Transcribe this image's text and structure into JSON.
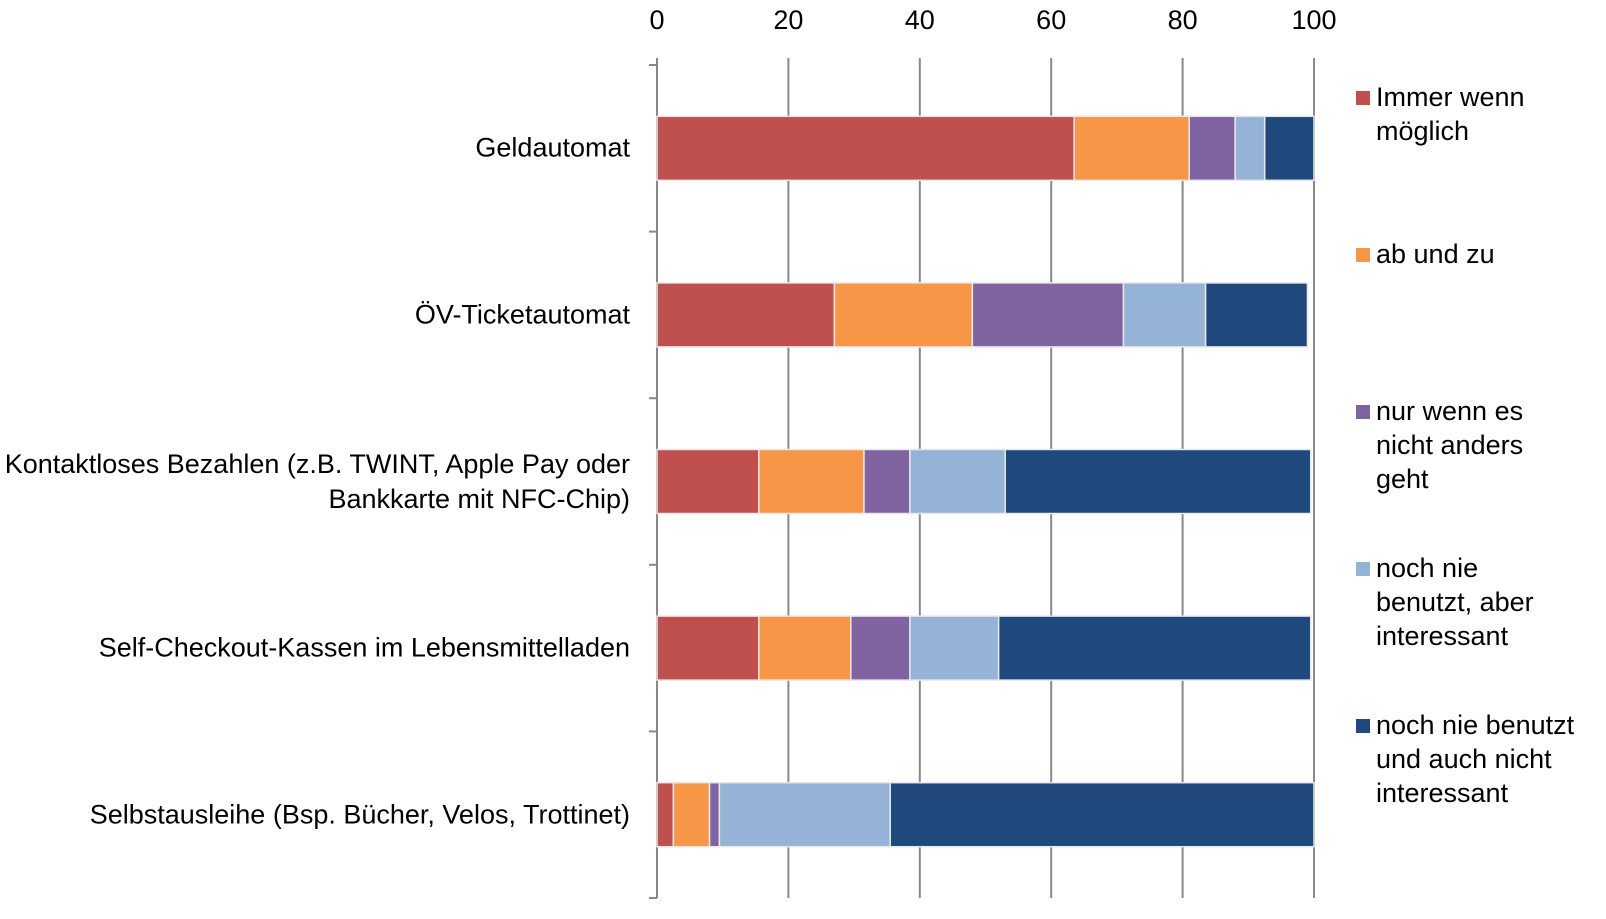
{
  "chart_data": {
    "type": "stacked-barh",
    "categories": [
      "Geldautomat",
      "ÖV-Ticketautomat",
      "Kontaktloses Bezahlen (z.B. TWINT, Apple Pay oder Bankkarte mit NFC-Chip)",
      "Self-Checkout-Kassen im Lebensmittelladen",
      "Selbstausleihe (Bsp. Bücher, Velos, Trottinet)"
    ],
    "series": [
      {
        "name": "Immer wenn möglich",
        "color": "#c0504d",
        "values": [
          63.5,
          27,
          15.5,
          15.5,
          2.5
        ]
      },
      {
        "name": "ab und zu",
        "color": "#f79646",
        "values": [
          17.5,
          21,
          16,
          14,
          5.5
        ]
      },
      {
        "name": "nur wenn es nicht anders geht",
        "color": "#8064a2",
        "values": [
          7,
          23,
          7,
          9,
          1.5
        ]
      },
      {
        "name": "noch nie benutzt, aber interessant",
        "color": "#95b3d7",
        "values": [
          4.5,
          12.5,
          14.5,
          13.5,
          26
        ]
      },
      {
        "name": "noch nie benutzt und auch nicht interessant",
        "color": "#1f497d",
        "values": [
          7.5,
          15.5,
          46.5,
          47.5,
          64.5
        ]
      }
    ],
    "xlim": [
      0,
      100
    ],
    "xticks": [
      0,
      20,
      40,
      60,
      80,
      100
    ],
    "grid": true,
    "legend": "right"
  }
}
